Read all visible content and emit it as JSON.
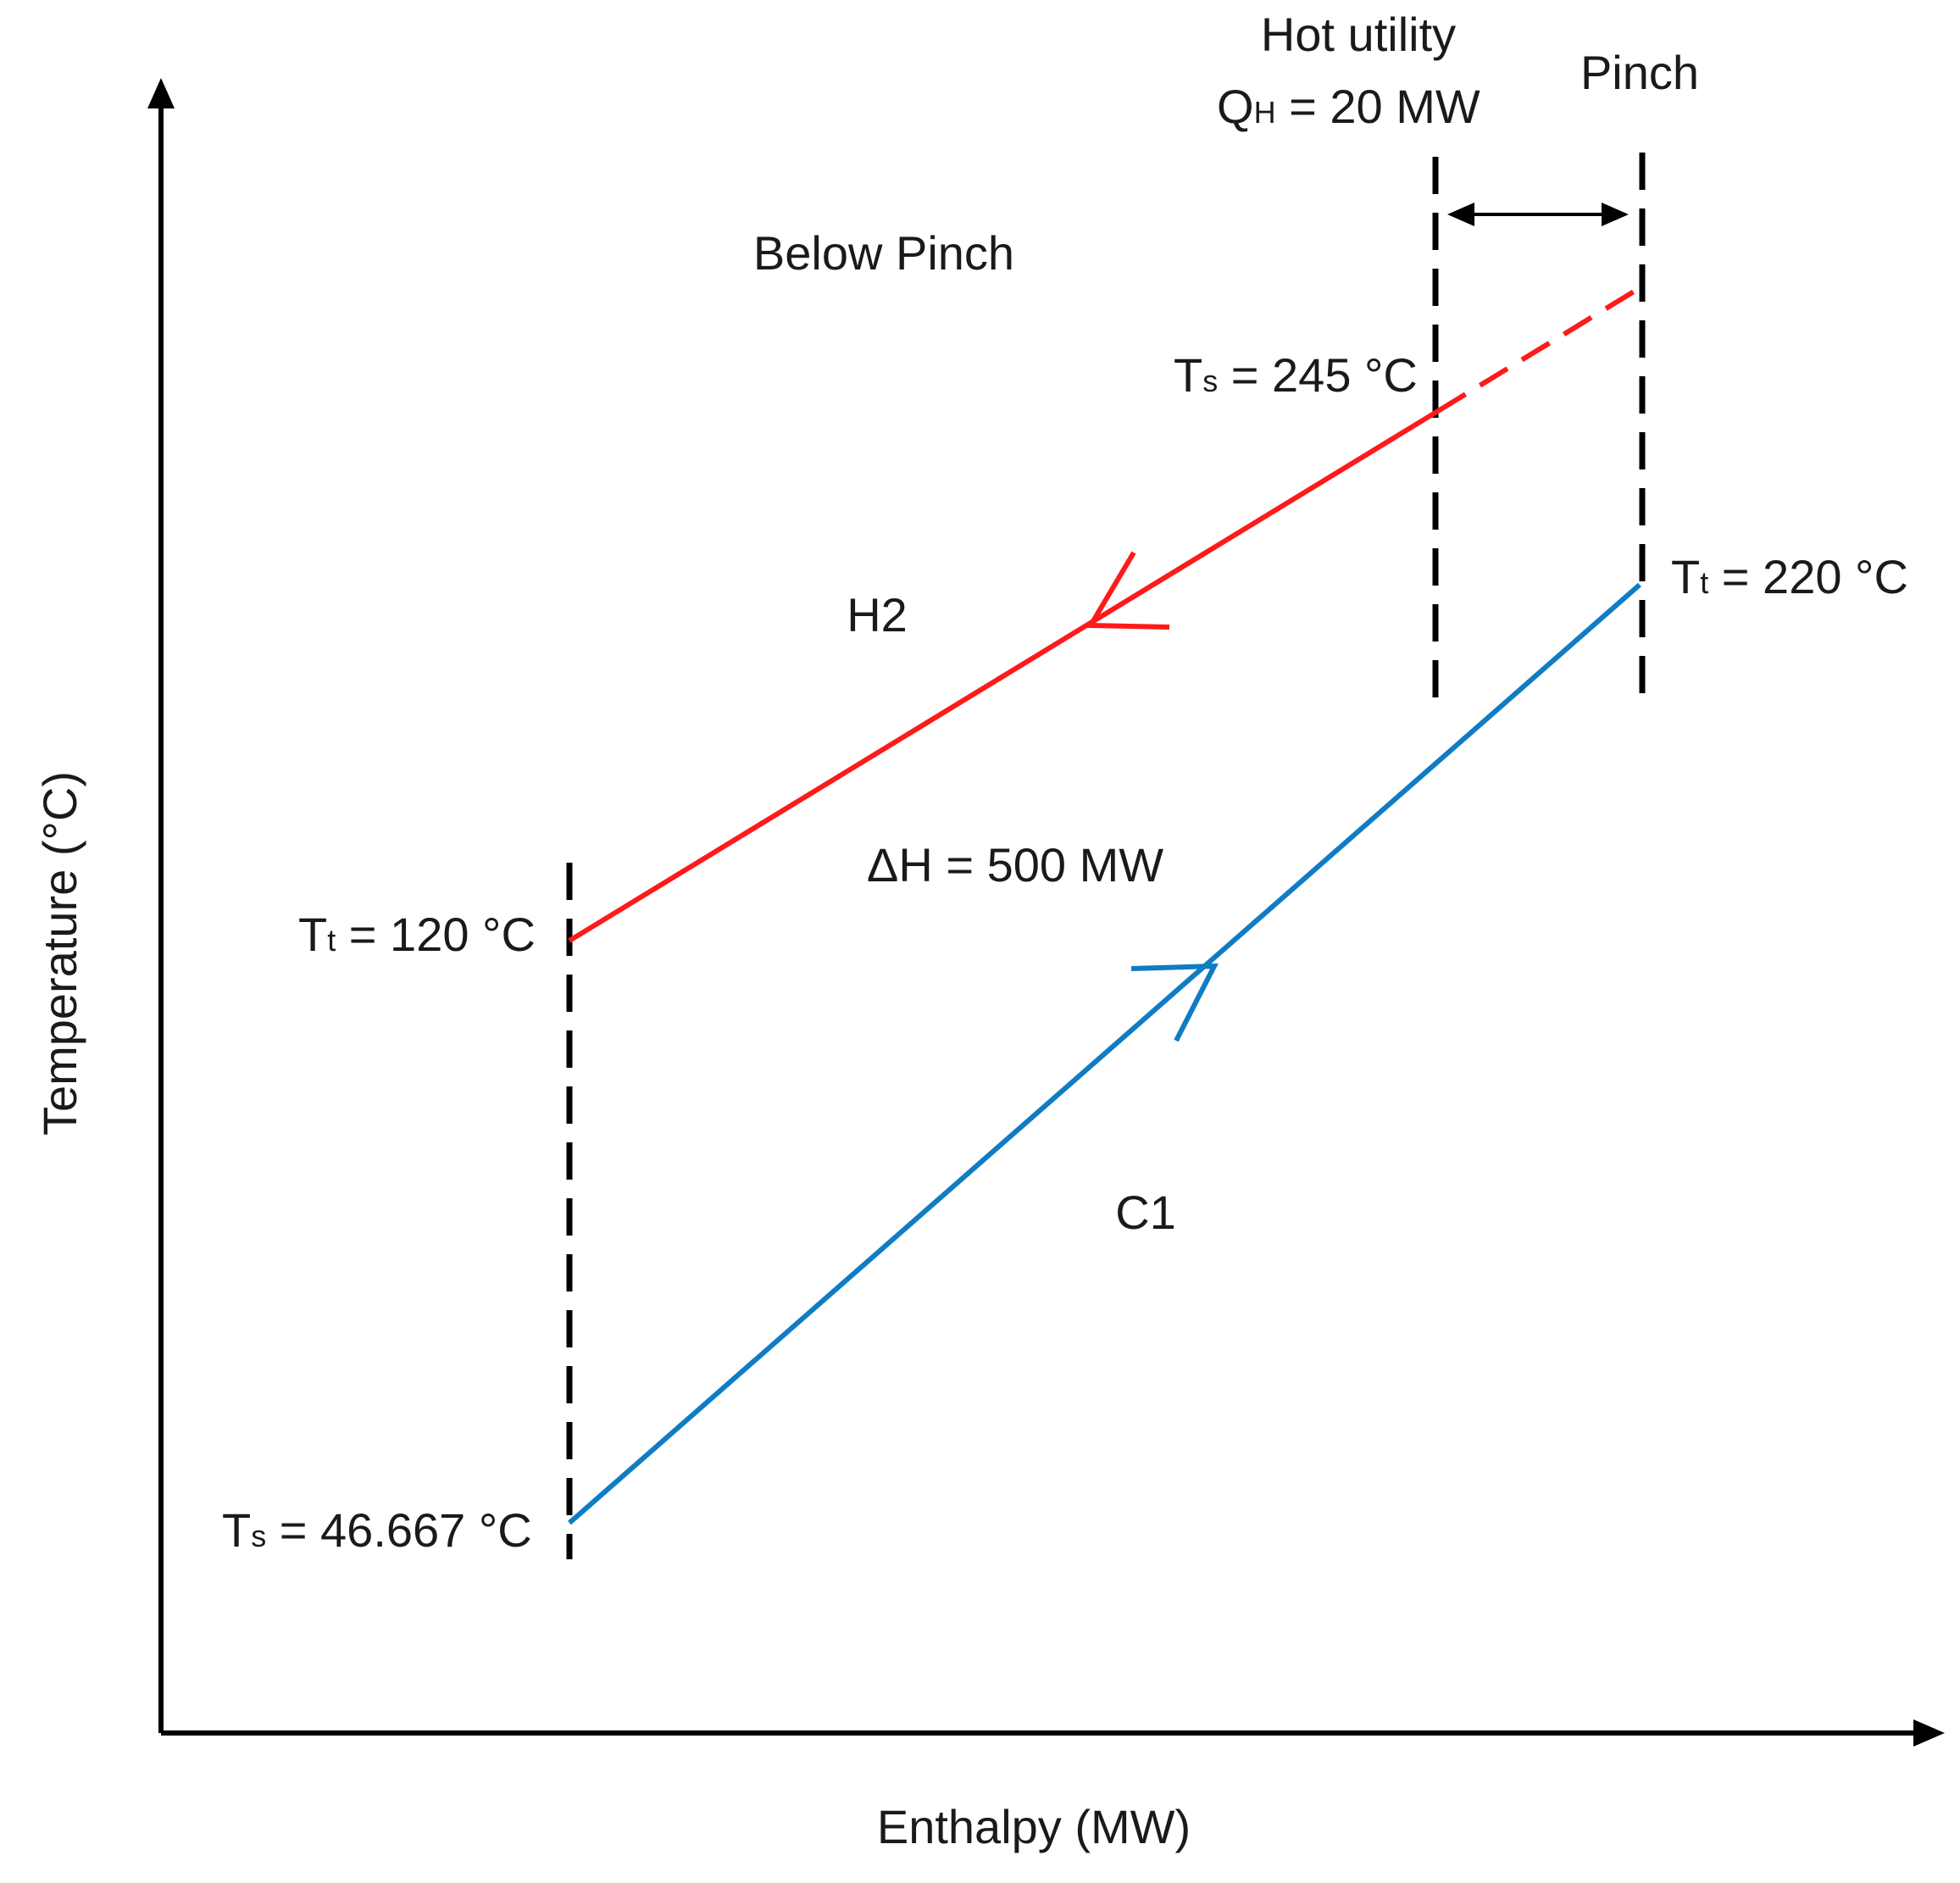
{
  "axes": {
    "x_label": "Enthalpy (MW)",
    "y_label": "Temperature (°C)"
  },
  "hot_utility": {
    "title": "Hot utility",
    "symbol_main": "Q",
    "symbol_sub": "H",
    "value_text": " = 20 MW"
  },
  "pinch_label": "Pinch",
  "region_label": "Below Pinch",
  "streams": {
    "hot": {
      "name": "H2",
      "color": "#ff1a1a",
      "supply": {
        "symbol": "T",
        "sub": "s",
        "value": " = 245 °C"
      },
      "target": {
        "symbol": "T",
        "sub": "t",
        "value": " = 120 °C"
      }
    },
    "cold": {
      "name": "C1",
      "color": "#0f7cc4",
      "supply": {
        "symbol": "T",
        "sub": "s",
        "value": " = 46.667 °C"
      },
      "target": {
        "symbol": "T",
        "sub": "t",
        "value": " = 220 °C"
      }
    }
  },
  "duty_label": "ΔH = 500 MW"
}
